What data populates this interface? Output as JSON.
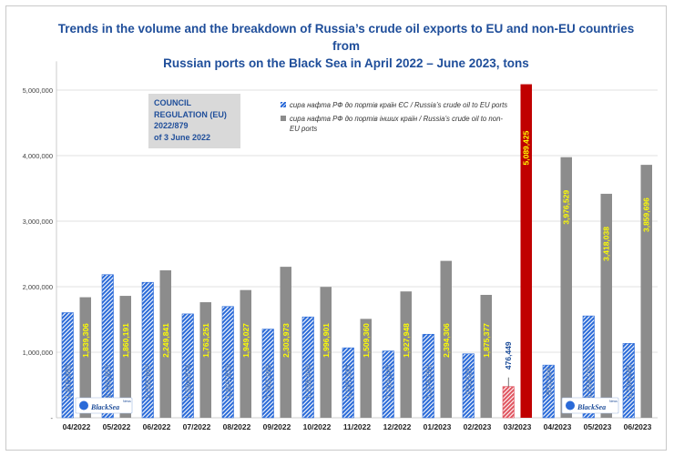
{
  "title": {
    "line1": "Trends in the volume and the breakdown of Russia’s crude oil exports to EU and non-EU countries from",
    "line2": "Russian ports on the Black Sea in April 2022 – June 2023, tons"
  },
  "council_box": {
    "line1": "COUNCIL",
    "line2": "REGULATION (EU)",
    "line3": "2022/879",
    "line4": "of 3 June 2022"
  },
  "logo": {
    "text": "BlackSea",
    "superscript": "News"
  },
  "colors": {
    "eu_bar": "#2a6ad8",
    "non_eu_bar": "#8c8c8c",
    "highlight_eu": "#e05560",
    "highlight_non_eu": "#c00000",
    "label_yellow": "#ffff00",
    "title_blue": "#1f4e9a"
  },
  "chart_data": {
    "type": "bar",
    "title": "Trends in the volume and the breakdown of Russia’s crude oil exports to EU and non-EU countries from Russian ports on the Black Sea in April 2022 – June 2023, tons",
    "xlabel": "",
    "ylabel": "",
    "ylim": [
      0,
      5300000
    ],
    "yticks": [
      0,
      1000000,
      2000000,
      3000000,
      4000000,
      5000000
    ],
    "ytick_labels": [
      "-",
      "1,000,000",
      "2,000,000",
      "3,000,000",
      "4,000,000",
      "5,000,000"
    ],
    "categories": [
      "04/2022",
      "05/2022",
      "06/2022",
      "07/2022",
      "08/2022",
      "09/2022",
      "10/2022",
      "11/2022",
      "12/2022",
      "01/2023",
      "02/2023",
      "03/2023",
      "04/2023",
      "05/2023",
      "06/2023"
    ],
    "highlight_category": "03/2023",
    "legend_position": "top-center",
    "series": [
      {
        "name": "сира нафта РФ до портів країн ЄС / Russia’s crude oil to EU ports",
        "values": [
          1603983,
          2183857,
          2066667,
          1584674,
          1697819,
          1352965,
          1538939,
          1067397,
          1019247,
          1274281,
          975520,
          476449,
          803594,
          1554020,
          1134445
        ],
        "labels": [
          "1,603,983",
          "2,183,857",
          "2,066,667",
          "1,584,674",
          "1,697,819",
          "1,352,965",
          "1,538,939",
          "1,067,397",
          "1,019,247",
          "1,274,281",
          "975,520",
          "476,449",
          "803,594",
          "1,554,020",
          "1,134,445"
        ]
      },
      {
        "name": "сира нафта РФ до портів інших країн / Russia’s crude oil to non-EU ports",
        "values": [
          1839306,
          1860191,
          2249841,
          1763251,
          1949027,
          2303973,
          1996901,
          1509360,
          1927948,
          2394306,
          1875377,
          5089425,
          3976529,
          3418038,
          3859696
        ],
        "labels": [
          "1,839,306",
          "1,860,191",
          "2,249,841",
          "1,763,251",
          "1,949,027",
          "2,303,973",
          "1,996,901",
          "1,509,360",
          "1,927,948",
          "2,394,306",
          "1,875,377",
          "5,089,425",
          "3,976,529",
          "3,418,038",
          "3,859,696"
        ]
      }
    ]
  }
}
